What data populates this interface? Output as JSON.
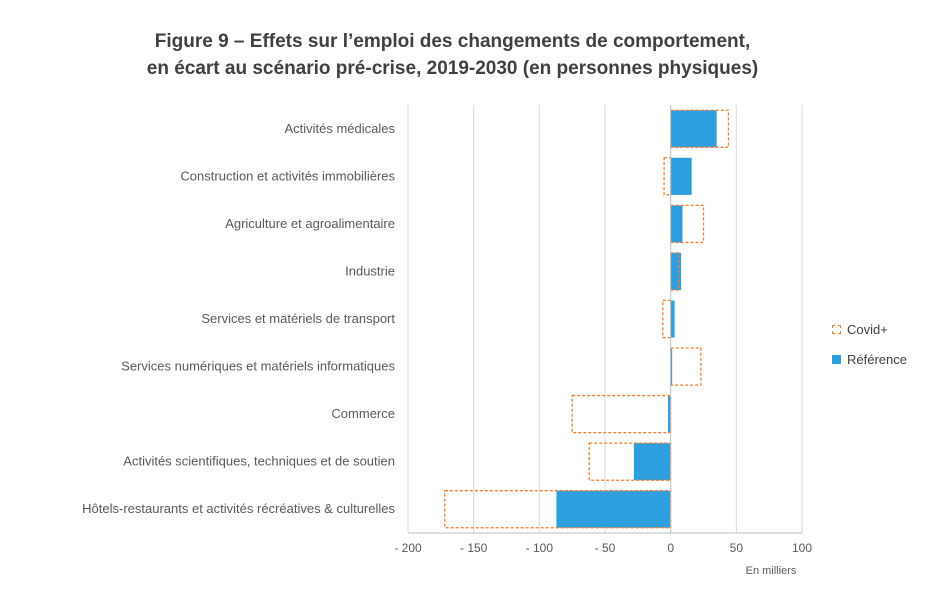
{
  "title_line1": "Figure 9 – Effets sur l’emploi des changements de comportement,",
  "title_line2": "en écart au scénario pré-crise, 2019-2030 (en personnes physiques)",
  "colors": {
    "reference": "#2E9FDE",
    "covid": "#ED7D31",
    "grid": "#D9D9D9",
    "axis": "#BFBFBF",
    "text": "#595959"
  },
  "chart_data": {
    "type": "bar",
    "orientation": "horizontal",
    "categories": [
      "Activités médicales",
      "Construction et activités immobilières",
      "Agriculture et agroalimentaire",
      "Industrie",
      "Services et matériels de transport",
      "Services numériques et matériels informatiques",
      "Commerce",
      "Activités scientifiques, techniques et de soutien",
      "Hôtels-restaurants et activités récréatives & culturelles"
    ],
    "series": [
      {
        "name": "Référence",
        "values": [
          35,
          16,
          9,
          8,
          3,
          1,
          -2,
          -28,
          -87
        ]
      },
      {
        "name": "Covid+",
        "values": [
          44,
          -5,
          25,
          6,
          -6,
          23,
          -75,
          -62,
          -172
        ]
      }
    ],
    "xlim": [
      -200,
      100
    ],
    "xticks": [
      -200,
      -150,
      -100,
      -50,
      0,
      50,
      100
    ],
    "xtick_labels": [
      "- 200",
      "- 150",
      "- 100",
      "- 50",
      "0",
      "50",
      "100"
    ],
    "xlabel": "En milliers",
    "grid": true,
    "legend": "right"
  }
}
